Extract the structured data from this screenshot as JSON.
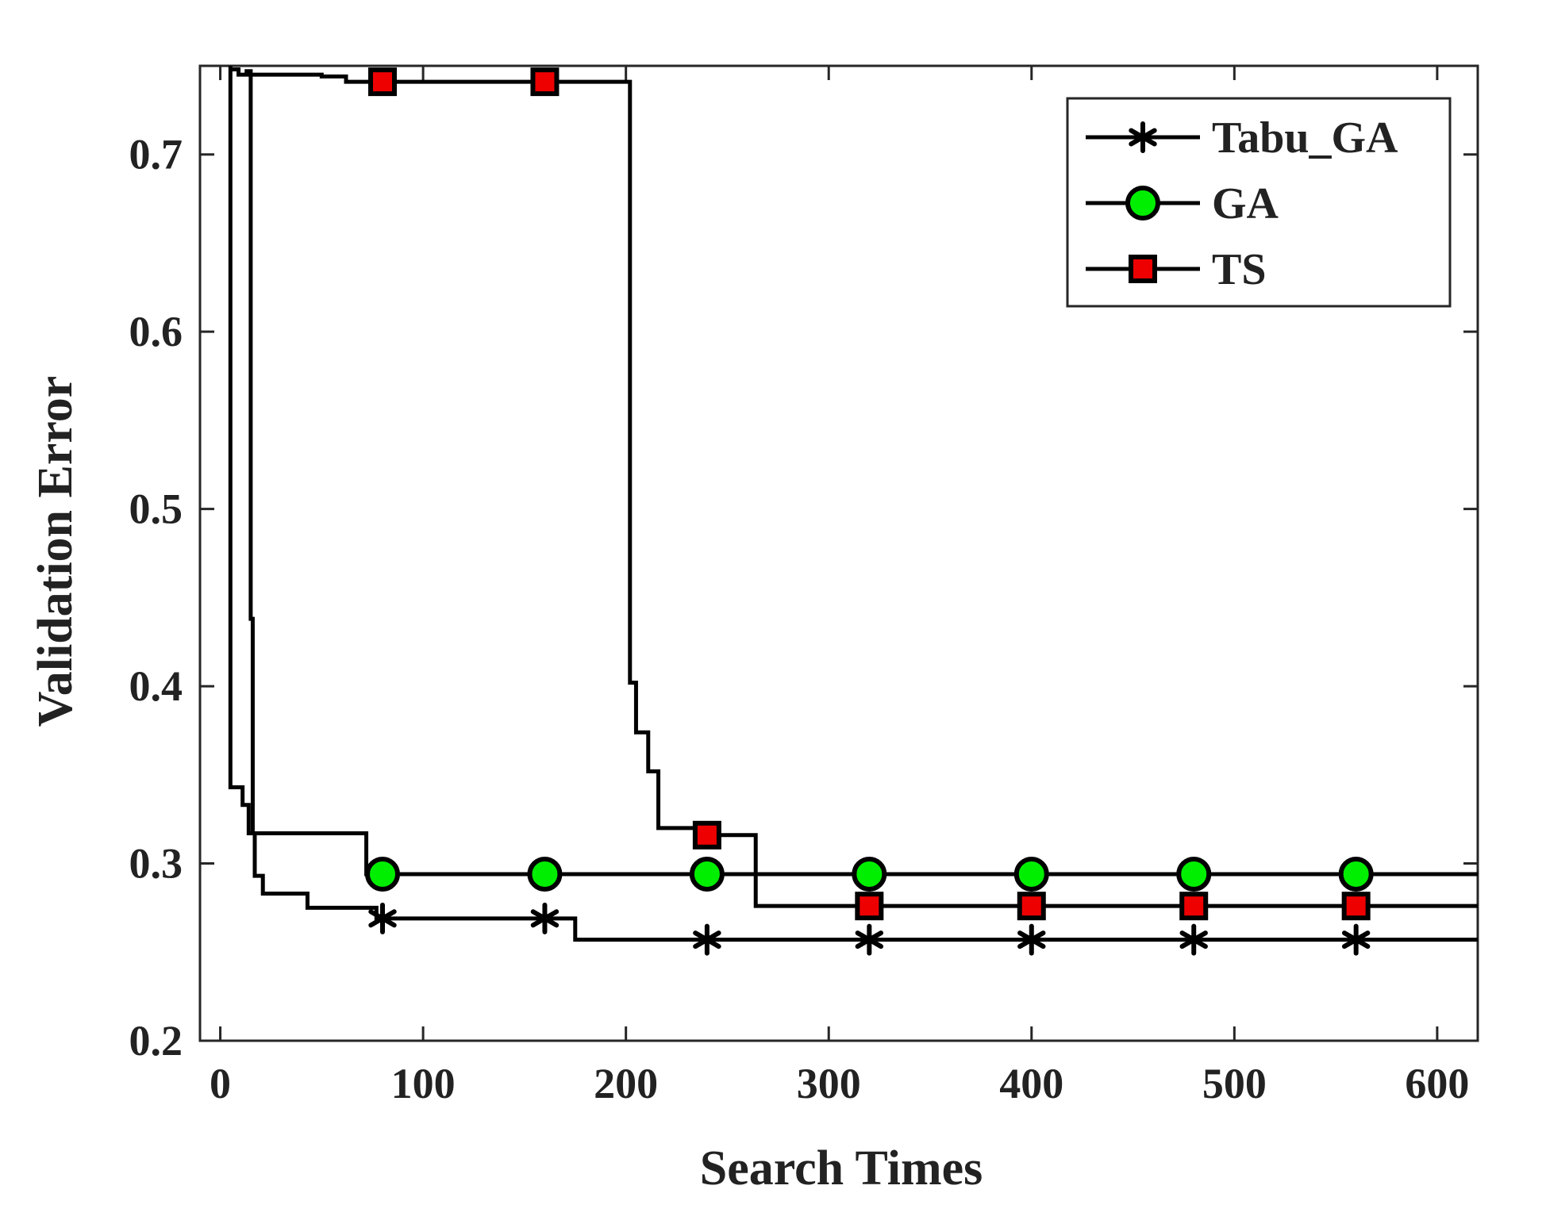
{
  "chart_data": {
    "type": "line",
    "title": "",
    "xlabel": "Search Times",
    "ylabel": "Validation Error",
    "xlim": [
      -10,
      620
    ],
    "ylim": [
      0.2,
      0.75
    ],
    "xticks": [
      0,
      100,
      200,
      300,
      400,
      500,
      600
    ],
    "yticks": [
      0.2,
      0.3,
      0.4,
      0.5,
      0.6,
      0.7
    ],
    "xtick_labels": [
      "0",
      "100",
      "200",
      "300",
      "400",
      "500",
      "600"
    ],
    "ytick_labels": [
      "0.2",
      "0.3",
      "0.4",
      "0.5",
      "0.6",
      "0.7"
    ],
    "grid": false,
    "legend_position": "top-right",
    "step": true,
    "series": [
      {
        "name": "Tabu_GA",
        "marker": "asterisk",
        "line_color": "#000000",
        "marker_fill": "#000000",
        "x": [
          4,
          5,
          11,
          14,
          17,
          21,
          43,
          77,
          175,
          620
        ],
        "y": [
          0.75,
          0.343,
          0.333,
          0.317,
          0.293,
          0.283,
          0.275,
          0.269,
          0.257,
          0.257
        ],
        "marker_x": [
          80,
          160,
          240,
          320,
          400,
          480,
          560
        ],
        "marker_y": [
          0.269,
          0.269,
          0.257,
          0.257,
          0.257,
          0.257,
          0.257
        ]
      },
      {
        "name": "GA",
        "marker": "circle",
        "line_color": "#000000",
        "marker_fill": "#00ee00",
        "x": [
          12,
          15,
          16,
          72,
          620
        ],
        "y": [
          0.747,
          0.438,
          0.317,
          0.294,
          0.294
        ],
        "marker_x": [
          80,
          160,
          240,
          320,
          400,
          480,
          560
        ],
        "marker_y": [
          0.294,
          0.294,
          0.294,
          0.294,
          0.294,
          0.294,
          0.294
        ]
      },
      {
        "name": "TS",
        "marker": "square",
        "line_color": "#000000",
        "marker_fill": "#ee0000",
        "x": [
          5,
          9,
          50,
          62,
          202,
          205,
          211,
          216,
          219,
          234,
          264,
          620
        ],
        "y": [
          0.748,
          0.745,
          0.744,
          0.741,
          0.402,
          0.374,
          0.352,
          0.32,
          0.32,
          0.316,
          0.276,
          0.276
        ],
        "marker_x": [
          80,
          160,
          240,
          320,
          400,
          480,
          560
        ],
        "marker_y": [
          0.741,
          0.741,
          0.316,
          0.276,
          0.276,
          0.276,
          0.276
        ]
      }
    ]
  }
}
